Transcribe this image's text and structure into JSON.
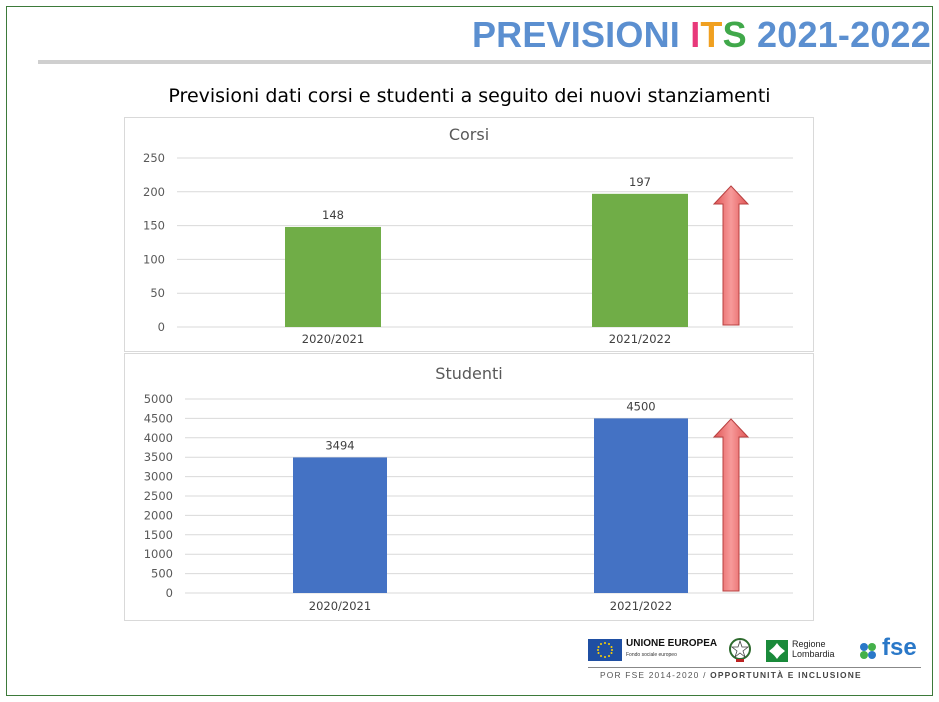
{
  "header": {
    "title_part1": "PREVISIONI ",
    "title_i": "I",
    "title_t": "T",
    "title_s": "S",
    "title_part2": " 2021-2022",
    "subtitle": "Previsioni dati corsi e studenti a seguito dei nuovi stanziamenti"
  },
  "colors": {
    "title_blue": "#5b8fd0",
    "corsi_bar": "#70ad47",
    "studenti_bar": "#4472c4",
    "arrow": "#f07c7c"
  },
  "chart_data": [
    {
      "type": "bar",
      "title": "Corsi",
      "categories": [
        "2020/2021",
        "2021/2022"
      ],
      "values": [
        148,
        197
      ],
      "ylim": [
        0,
        250
      ],
      "yticks": [
        0,
        50,
        100,
        150,
        200,
        250
      ],
      "grid": true,
      "color": "#70ad47",
      "annotation": "up-arrow"
    },
    {
      "type": "bar",
      "title": "Studenti",
      "categories": [
        "2020/2021",
        "2021/2022"
      ],
      "values": [
        3494,
        4500
      ],
      "ylim": [
        0,
        5000
      ],
      "yticks": [
        0,
        500,
        1000,
        1500,
        2000,
        2500,
        3000,
        3500,
        4000,
        4500,
        5000
      ],
      "grid": true,
      "color": "#4472c4",
      "annotation": "up-arrow"
    }
  ],
  "footer": {
    "eu_name": "UNIONE EUROPEA",
    "eu_sub": "Fondo sociale europeo",
    "lombardia_line1": "Regione",
    "lombardia_line2": "Lombardia",
    "fse": "fse",
    "program": "POR FSE 2014-2020 / ",
    "program_bold": "OPPORTUNITÀ E INCLUSIONE"
  }
}
